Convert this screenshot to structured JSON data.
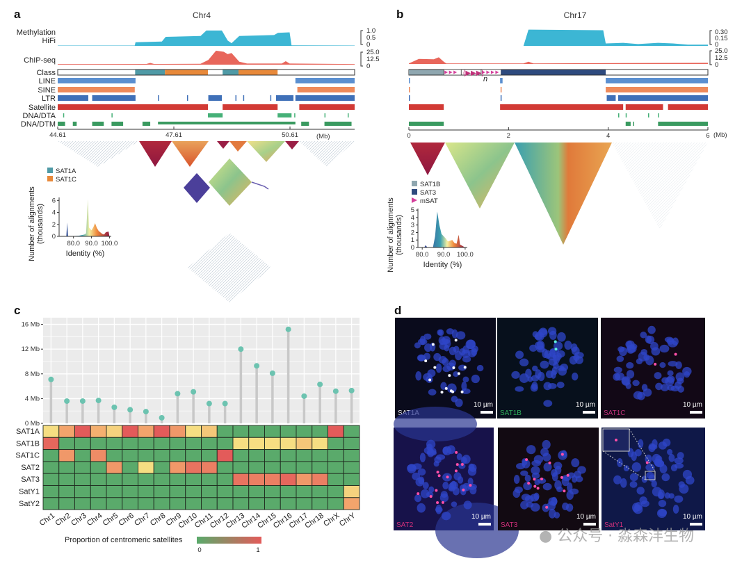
{
  "panel_a": {
    "label": "a",
    "title": "Chr4",
    "track_labels": [
      "Methylation",
      "HiFi",
      "ChIP-seq",
      "Class",
      "LINE",
      "SINE",
      "LTR",
      "Satellite",
      "DNA/DTA",
      "DNA/DTM"
    ],
    "methylation_scale": [
      "1.0",
      "0.5",
      "0"
    ],
    "chip_scale": [
      "25.0",
      "12.5",
      "0"
    ],
    "x_ticks": [
      {
        "label": "44.61",
        "mb": 44.61
      },
      {
        "label": "47.61",
        "mb": 47.61
      },
      {
        "label": "50.61",
        "mb": 50.61
      }
    ],
    "x_unit": "(Mb)",
    "range_mb": [
      44.61,
      52.28
    ],
    "methylation_profile": [
      [
        44.61,
        0.02
      ],
      [
        46.6,
        0.02
      ],
      [
        46.62,
        0.2
      ],
      [
        47.3,
        0.24
      ],
      [
        47.4,
        0.5
      ],
      [
        48.3,
        0.55
      ],
      [
        48.45,
        0.85
      ],
      [
        48.85,
        0.85
      ],
      [
        49.0,
        0.3
      ],
      [
        49.1,
        0.15
      ],
      [
        49.3,
        0.55
      ],
      [
        50.2,
        0.6
      ],
      [
        50.3,
        0.72
      ],
      [
        50.6,
        0.75
      ],
      [
        50.65,
        0.03
      ],
      [
        52.28,
        0.02
      ]
    ],
    "chip_profile": [
      [
        44.61,
        1
      ],
      [
        46.9,
        1.2
      ],
      [
        47.0,
        3
      ],
      [
        47.1,
        1.2
      ],
      [
        48.3,
        1.5
      ],
      [
        48.5,
        8
      ],
      [
        48.7,
        24
      ],
      [
        48.9,
        22
      ],
      [
        49.0,
        18
      ],
      [
        49.1,
        20
      ],
      [
        49.3,
        5
      ],
      [
        49.5,
        2
      ],
      [
        50.4,
        2
      ],
      [
        50.5,
        6
      ],
      [
        50.6,
        2
      ],
      [
        52.28,
        1
      ]
    ],
    "class_segments": [
      {
        "start": 44.61,
        "end": 46.61,
        "class": "none"
      },
      {
        "start": 46.61,
        "end": 47.38,
        "class": "SAT1A"
      },
      {
        "start": 47.38,
        "end": 48.49,
        "class": "SAT1C"
      },
      {
        "start": 48.49,
        "end": 48.87,
        "class": "none"
      },
      {
        "start": 48.87,
        "end": 49.28,
        "class": "SAT1A"
      },
      {
        "start": 49.28,
        "end": 50.29,
        "class": "SAT1C"
      },
      {
        "start": 50.29,
        "end": 52.28,
        "class": "none"
      }
    ],
    "tracks": {
      "LINE": [
        [
          44.61,
          46.62
        ],
        [
          50.75,
          52.28
        ]
      ],
      "SINE": [
        [
          44.61,
          46.6
        ],
        [
          50.8,
          52.28
        ]
      ],
      "LTR": [
        [
          44.61,
          45.4
        ],
        [
          45.5,
          46.62
        ],
        [
          47.2,
          47.22
        ],
        [
          47.95,
          47.97
        ],
        [
          48.5,
          48.85
        ],
        [
          49.2,
          49.22
        ],
        [
          49.4,
          49.42
        ],
        [
          50.1,
          50.12
        ],
        [
          50.25,
          50.7
        ],
        [
          50.75,
          52.28
        ]
      ],
      "Satellite": [
        [
          44.61,
          48.49
        ],
        [
          48.87,
          50.29
        ],
        [
          50.85,
          52.28
        ]
      ],
      "DNA/DTA": [
        [
          44.75,
          44.77
        ],
        [
          46.0,
          46.02
        ],
        [
          48.49,
          48.87
        ],
        [
          50.29,
          50.65
        ],
        [
          50.72,
          50.74
        ],
        [
          51.5,
          51.52
        ],
        [
          52.1,
          52.12
        ]
      ],
      "DNA/DTM": [
        [
          44.61,
          44.8
        ],
        [
          45.0,
          45.1
        ],
        [
          45.5,
          45.8
        ],
        [
          46.0,
          46.3
        ],
        [
          46.8,
          47.0
        ],
        [
          47.2,
          50.75
        ],
        [
          50.9,
          51.1
        ],
        [
          51.5,
          52.2
        ]
      ]
    },
    "legend": [
      {
        "label": "SAT1A",
        "color": "#4f9aa6"
      },
      {
        "label": "SAT1C",
        "color": "#e8893a"
      }
    ],
    "histogram": {
      "ylabel": [
        "Number of alignments",
        "(thousands)"
      ],
      "xlabel": "Identity (%)",
      "y_ticks": [
        "0",
        "2",
        "4",
        "6"
      ],
      "x_ticks": [
        "80.0",
        "90.0",
        "100.0"
      ],
      "xlim": [
        72,
        101
      ],
      "ylim": [
        0,
        6.5
      ],
      "points": [
        [
          72,
          0
        ],
        [
          76,
          0
        ],
        [
          76.5,
          2.3
        ],
        [
          77,
          0
        ],
        [
          83,
          0.1
        ],
        [
          86,
          0.3
        ],
        [
          87,
          0.5
        ],
        [
          88,
          6.2
        ],
        [
          88.6,
          1.5
        ],
        [
          90,
          1.0
        ],
        [
          91,
          1.5
        ],
        [
          92,
          2.2
        ],
        [
          93,
          1.4
        ],
        [
          94,
          0.9
        ],
        [
          96,
          0.4
        ],
        [
          97,
          0.3
        ],
        [
          98,
          0.7
        ],
        [
          99.5,
          0.8
        ],
        [
          100,
          0
        ]
      ]
    }
  },
  "panel_b": {
    "label": "b",
    "title": "Chr17",
    "methylation_scale": [
      "0.30",
      "0.15",
      "0"
    ],
    "chip_scale": [
      "25.0",
      "12.5",
      "0"
    ],
    "x_ticks": [
      {
        "label": "0",
        "mb": 0
      },
      {
        "label": "2",
        "mb": 2
      },
      {
        "label": "4",
        "mb": 4
      },
      {
        "label": "6",
        "mb": 6
      }
    ],
    "x_unit": "(Mb)",
    "range_mb": [
      0,
      6
    ],
    "mSAT_repeat_text": "(▶▶▶)",
    "mSAT_repeat_n": "n",
    "methylation_profile": [
      [
        0,
        0
      ],
      [
        2.3,
        0
      ],
      [
        2.4,
        0.27
      ],
      [
        3.9,
        0.26
      ],
      [
        3.95,
        0.04
      ],
      [
        4.3,
        0.05
      ],
      [
        4.6,
        0.03
      ],
      [
        5.0,
        0.05
      ],
      [
        5.3,
        0.04
      ],
      [
        5.6,
        0.02
      ],
      [
        6,
        0.02
      ]
    ],
    "chip_profile": [
      [
        0,
        1
      ],
      [
        0.2,
        9
      ],
      [
        0.5,
        8.5
      ],
      [
        0.6,
        12
      ],
      [
        0.7,
        4
      ],
      [
        0.75,
        1
      ],
      [
        2.3,
        1
      ],
      [
        2.4,
        4
      ],
      [
        2.5,
        1
      ],
      [
        6,
        2
      ]
    ],
    "class_segments": [
      {
        "start": 0,
        "end": 0.7,
        "class": "SAT1B"
      },
      {
        "start": 0.7,
        "end": 1.05,
        "class": "mSAT"
      },
      {
        "start": 1.45,
        "end": 1.85,
        "class": "mSAT"
      },
      {
        "start": 1.85,
        "end": 3.95,
        "class": "SAT3"
      },
      {
        "start": 3.95,
        "end": 6,
        "class": "none"
      }
    ],
    "tracks": {
      "LINE": [
        [
          0,
          0.02
        ],
        [
          1.83,
          1.88
        ],
        [
          3.95,
          6
        ]
      ],
      "SINE": [
        [
          0,
          0.02
        ],
        [
          1.84,
          1.86
        ],
        [
          3.95,
          6
        ]
      ],
      "LTR": [
        [
          0,
          0.02
        ],
        [
          1.84,
          1.86
        ],
        [
          3.97,
          4.15
        ],
        [
          4.2,
          6
        ]
      ],
      "Satellite": [
        [
          0,
          0.7
        ],
        [
          1.83,
          4.3
        ],
        [
          4.35,
          5.1
        ],
        [
          5.2,
          6
        ]
      ],
      "DNA/DTA": [
        [
          4.2,
          4.22
        ],
        [
          4.35,
          4.37
        ],
        [
          4.8,
          4.82
        ],
        [
          5.0,
          5.02
        ]
      ],
      "DNA/DTM": [
        [
          0,
          0.7
        ],
        [
          4.35,
          4.45
        ],
        [
          4.5,
          4.52
        ],
        [
          5.0,
          6
        ]
      ]
    },
    "legend": [
      {
        "label": "SAT1B",
        "color": "#8fa7b0",
        "shape": "square"
      },
      {
        "label": "SAT3",
        "color": "#2e4a7e",
        "shape": "square"
      },
      {
        "label": "mSAT",
        "color": "#d43f9b",
        "shape": "triangle"
      }
    ],
    "histogram": {
      "ylabel": [
        "Number of alignments",
        "(thousands)"
      ],
      "xlabel": "Identity (%)",
      "y_ticks": [
        "0",
        "1",
        "2",
        "3",
        "4",
        "5"
      ],
      "x_ticks": [
        "80.0",
        "90.0",
        "100.0"
      ],
      "xlim": [
        78,
        101
      ],
      "ylim": [
        0,
        5.2
      ],
      "points": [
        [
          79,
          0
        ],
        [
          81,
          0
        ],
        [
          81.5,
          0.3
        ],
        [
          82.5,
          0
        ],
        [
          85,
          0
        ],
        [
          86,
          1.5
        ],
        [
          87,
          4.8
        ],
        [
          88,
          3
        ],
        [
          89,
          1.8
        ],
        [
          90,
          1.5
        ],
        [
          91,
          1.2
        ],
        [
          92,
          0.8
        ],
        [
          93,
          0.9
        ],
        [
          94,
          1.0
        ],
        [
          95,
          0.6
        ],
        [
          96,
          0.5
        ],
        [
          97,
          1.7
        ],
        [
          97.6,
          0.4
        ],
        [
          100,
          0
        ]
      ]
    }
  },
  "panel_c": {
    "label": "c",
    "legend_title": "Proportion of centromeric satellites",
    "legend_min": "0",
    "legend_max": "1"
  },
  "chart_data": [
    {
      "type": "scatter",
      "subtype": "lollipop",
      "title": "",
      "xlabel": "",
      "ylabel": "",
      "categories": [
        "Chr1",
        "Chr2",
        "Chr3",
        "Chr4",
        "Chr5",
        "Chr6",
        "Chr7",
        "Chr8",
        "Chr9",
        "Chr10",
        "Chr11",
        "Chr12",
        "Chr13",
        "Chr14",
        "Chr15",
        "Chr16",
        "Chr17",
        "Chr18",
        "ChrX",
        "ChrY"
      ],
      "values": [
        7.1,
        3.6,
        3.6,
        3.7,
        2.6,
        2.2,
        1.9,
        0.9,
        4.8,
        5.1,
        3.2,
        3.2,
        12.0,
        9.3,
        8.1,
        15.2,
        4.4,
        6.3,
        5.2,
        5.3
      ],
      "unit": "Mb",
      "y_ticks": [
        "0 Mb",
        "4 Mb",
        "8 Mb",
        "12 Mb",
        "16 Mb"
      ],
      "ylim": [
        0,
        16.5
      ],
      "grid": true
    },
    {
      "type": "heatmap",
      "rows": [
        "SAT1A",
        "SAT1B",
        "SAT1C",
        "SAT2",
        "SAT3",
        "SatY1",
        "SatY2"
      ],
      "columns": [
        "Chr1",
        "Chr2",
        "Chr3",
        "Chr4",
        "Chr5",
        "Chr6",
        "Chr7",
        "Chr8",
        "Chr9",
        "Chr10",
        "Chr11",
        "Chr12",
        "Chr13",
        "Chr14",
        "Chr15",
        "Chr16",
        "Chr17",
        "Chr18",
        "ChrX",
        "ChrY"
      ],
      "values": [
        [
          0.4,
          0.65,
          0.95,
          0.6,
          0.45,
          0.95,
          0.65,
          0.95,
          0.7,
          0.4,
          0.5,
          0,
          0,
          0,
          0,
          0,
          0,
          0,
          0.95,
          0
        ],
        [
          0.9,
          0,
          0,
          0,
          0,
          0,
          0,
          0,
          0,
          0,
          0,
          0,
          0.4,
          0.4,
          0.4,
          0.4,
          0.5,
          0.4,
          0,
          0
        ],
        [
          0,
          0.7,
          0,
          0.75,
          0,
          0,
          0,
          0,
          0,
          0,
          0,
          0.95,
          0,
          0,
          0,
          0,
          0,
          0,
          0,
          0
        ],
        [
          0,
          0,
          0,
          0,
          0.7,
          0,
          0.4,
          0,
          0.7,
          0.85,
          0.8,
          0,
          0,
          0,
          0,
          0,
          0,
          0,
          0,
          0
        ],
        [
          0,
          0,
          0,
          0,
          0,
          0,
          0,
          0,
          0,
          0,
          0,
          0,
          0.85,
          0.8,
          0.8,
          0.9,
          0.7,
          0.8,
          0,
          0
        ],
        [
          0,
          0,
          0,
          0,
          0,
          0,
          0,
          0,
          0,
          0,
          0,
          0,
          0,
          0,
          0,
          0,
          0,
          0,
          0,
          0.45
        ],
        [
          0,
          0,
          0,
          0,
          0,
          0,
          0,
          0,
          0,
          0,
          0,
          0,
          0,
          0,
          0,
          0,
          0,
          0,
          0,
          0.65
        ]
      ],
      "color_scale": {
        "min": 0,
        "max": 1,
        "low_color": "#5aaa6b",
        "high_color": "#e35b5a"
      }
    }
  ],
  "panel_d": {
    "label": "d",
    "images": [
      {
        "probe": "SAT1A",
        "probe_color": "#e8e8f0",
        "scale_bar": "10 µm"
      },
      {
        "probe": "SAT1B",
        "probe_color": "#2fae5a",
        "scale_bar": "10 µm"
      },
      {
        "probe": "SAT1C",
        "probe_color": "#c0307a",
        "scale_bar": "10 µm"
      },
      {
        "probe": "SAT2",
        "probe_color": "#d0307a",
        "scale_bar": "10 µm"
      },
      {
        "probe": "SAT3",
        "probe_color": "#d0307a",
        "scale_bar": "10 µm"
      },
      {
        "probe": "SatY1",
        "probe_color": "#d0307a",
        "scale_bar": "10 µm"
      }
    ]
  },
  "watermark": "公众号 · 淼森沣生物",
  "colors": {
    "methylation": "#3cb6d4",
    "chip": "#e8665b",
    "LINE": "#5b8fd0",
    "SINE": "#ee8a5a",
    "LTR": "#3f70b8",
    "Satellite": "#d23a35",
    "DNA/DTA": "#45b077",
    "DNA/DTM": "#3a9a60",
    "SAT1A": "#4f9aa6",
    "SAT1C": "#e8893a",
    "SAT1B": "#8fa7b0",
    "SAT3": "#2e4a7e",
    "mSAT": "#d43f9b",
    "lollipop": "#6cc3b0",
    "stem": "#c8c8c8"
  }
}
